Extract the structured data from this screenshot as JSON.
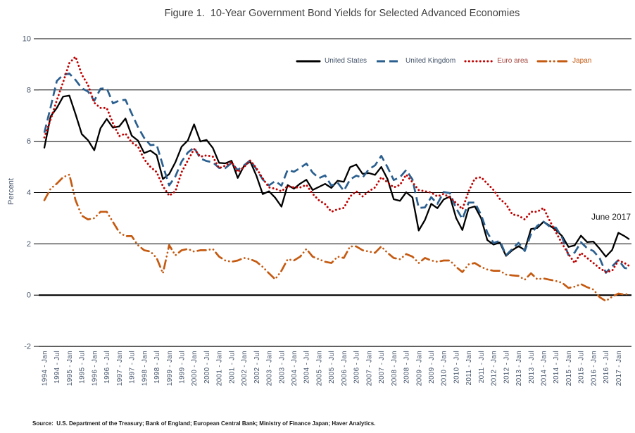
{
  "figure": {
    "title": "Figure 1.  10-Year Government Bond Yields for Selected Advanced Economies",
    "ylabel": "Percent",
    "annotation": "June 2017",
    "source": "Source:  U.S. Department of the Treasury; Bank of England; European Central Bank; Ministry of Finance Japan; Haver Analytics."
  },
  "chart_data": {
    "type": "line",
    "title": "Figure 1.  10-Year Government Bond Yields for Selected Advanced Economies",
    "xlabel": "",
    "ylabel": "Percent",
    "ylim": [
      -2,
      10
    ],
    "grid": "horizontal",
    "legend_position": "top-center-right",
    "annotations": [
      "June 2017"
    ],
    "y_ticks": [
      10,
      8,
      6,
      4,
      2,
      0,
      -2
    ],
    "x_tick_labels": [
      "1994 - Jan",
      "1994 - Jul",
      "1995 - Jan",
      "1995 - Jul",
      "1996 - Jan",
      "1996 - Jul",
      "1997 - Jan",
      "1997 - Jul",
      "1998 - Jan",
      "1998 - Jul",
      "1999 - Jan",
      "1999 - Jul",
      "2000 - Jan",
      "2000 - Jul",
      "2001 - Jan",
      "2001 - Jul",
      "2002 - Jan",
      "2002 - Jul",
      "2003 - Jan",
      "2003 - Jul",
      "2004 - Jan",
      "2004 - Jul",
      "2005 - Jan",
      "2005 - Jul",
      "2006 - Jan",
      "2006 - Jul",
      "2007 - Jan",
      "2007 - Jul",
      "2008 - Jan",
      "2008 - Jul",
      "2009 - Jan",
      "2009 - Jul",
      "2010 - Jan",
      "2010 - Jul",
      "2011 - Jan",
      "2011 - Jul",
      "2012 - Jan",
      "2012 - Jul",
      "2013 - Jan",
      "2013 - Jul",
      "2014 - Jan",
      "2014 - Jul",
      "2015 - Jan",
      "2015 - Jul",
      "2016 - Jan",
      "2016 - Jul",
      "2017 - Jan"
    ],
    "x": [
      1994,
      1994.25,
      1994.5,
      1994.75,
      1995,
      1995.25,
      1995.5,
      1995.75,
      1996,
      1996.25,
      1996.5,
      1996.75,
      1997,
      1997.25,
      1997.5,
      1997.75,
      1998,
      1998.25,
      1998.5,
      1998.75,
      1999,
      1999.25,
      1999.5,
      1999.75,
      2000,
      2000.25,
      2000.5,
      2000.75,
      2001,
      2001.25,
      2001.5,
      2001.75,
      2002,
      2002.25,
      2002.5,
      2002.75,
      2003,
      2003.25,
      2003.5,
      2003.75,
      2004,
      2004.25,
      2004.5,
      2004.75,
      2005,
      2005.25,
      2005.5,
      2005.75,
      2006,
      2006.25,
      2006.5,
      2006.75,
      2007,
      2007.25,
      2007.5,
      2007.75,
      2008,
      2008.25,
      2008.5,
      2008.75,
      2009,
      2009.25,
      2009.5,
      2009.75,
      2010,
      2010.25,
      2010.5,
      2010.75,
      2011,
      2011.25,
      2011.5,
      2011.75,
      2012,
      2012.25,
      2012.5,
      2012.75,
      2013,
      2013.25,
      2013.5,
      2013.75,
      2014,
      2014.25,
      2014.5,
      2014.75,
      2015,
      2015.25,
      2015.5,
      2015.75,
      2016,
      2016.25,
      2016.5,
      2016.75,
      2017,
      2017.25,
      2017.42
    ],
    "series": [
      {
        "name": "United States",
        "color": "#000000",
        "label_color": "#44546A",
        "style": "solid",
        "values": [
          5.75,
          6.97,
          7.3,
          7.74,
          7.78,
          7.06,
          6.28,
          6.04,
          5.65,
          6.51,
          6.87,
          6.53,
          6.58,
          6.89,
          6.22,
          6.03,
          5.54,
          5.64,
          5.46,
          4.53,
          4.72,
          5.18,
          5.79,
          6.03,
          6.66,
          5.99,
          6.05,
          5.74,
          5.16,
          5.14,
          5.24,
          4.57,
          5.04,
          5.21,
          4.65,
          3.94,
          4.05,
          3.8,
          3.45,
          4.29,
          4.15,
          4.35,
          4.5,
          4.1,
          4.22,
          4.34,
          4.18,
          4.46,
          4.42,
          4.99,
          5.09,
          4.73,
          4.76,
          4.69,
          5.0,
          4.53,
          3.74,
          3.68,
          4.01,
          3.81,
          2.52,
          2.93,
          3.56,
          3.39,
          3.73,
          3.85,
          3.01,
          2.54,
          3.39,
          3.46,
          3.0,
          2.15,
          1.97,
          2.05,
          1.53,
          1.75,
          1.91,
          1.76,
          2.58,
          2.62,
          2.86,
          2.71,
          2.54,
          2.3,
          1.88,
          1.94,
          2.32,
          2.07,
          2.09,
          1.81,
          1.5,
          1.76,
          2.43,
          2.3,
          2.19
        ]
      },
      {
        "name": "United Kingdom",
        "color": "#2A5F8F",
        "label_color": "#44546A",
        "style": "dashed",
        "values": [
          6.33,
          7.33,
          8.35,
          8.59,
          8.64,
          8.39,
          8.07,
          7.94,
          7.58,
          8.05,
          8.07,
          7.48,
          7.59,
          7.62,
          7.08,
          6.56,
          6.13,
          5.85,
          5.87,
          5.05,
          4.28,
          4.63,
          5.21,
          5.56,
          5.76,
          5.33,
          5.23,
          5.18,
          4.96,
          4.95,
          5.16,
          4.88,
          5.06,
          5.26,
          4.91,
          4.51,
          4.28,
          4.45,
          4.27,
          4.89,
          4.81,
          4.96,
          5.13,
          4.78,
          4.56,
          4.67,
          4.27,
          4.39,
          4.07,
          4.51,
          4.66,
          4.58,
          4.91,
          5.06,
          5.43,
          4.99,
          4.49,
          4.6,
          4.88,
          4.51,
          3.4,
          3.42,
          3.82,
          3.56,
          4.02,
          3.98,
          3.39,
          2.97,
          3.61,
          3.61,
          3.13,
          2.44,
          2.03,
          2.12,
          1.56,
          1.8,
          2.04,
          1.72,
          2.38,
          2.7,
          2.87,
          2.67,
          2.63,
          2.24,
          1.56,
          1.66,
          2.06,
          1.83,
          1.72,
          1.44,
          0.87,
          1.12,
          1.37,
          1.06,
          1.03
        ]
      },
      {
        "name": "Euro area",
        "color": "#C00000",
        "label_color": "#A5453E",
        "style": "dotted",
        "values": [
          6.15,
          6.85,
          7.6,
          8.3,
          9.05,
          9.3,
          8.6,
          8.2,
          7.5,
          7.3,
          7.3,
          6.7,
          6.2,
          6.3,
          5.95,
          5.8,
          5.3,
          5.0,
          4.8,
          4.25,
          3.88,
          4.05,
          4.8,
          5.25,
          5.7,
          5.4,
          5.45,
          5.4,
          4.95,
          5.05,
          5.2,
          4.8,
          5.0,
          5.25,
          4.95,
          4.55,
          4.2,
          4.15,
          4.05,
          4.25,
          4.2,
          4.2,
          4.3,
          3.95,
          3.7,
          3.55,
          3.25,
          3.35,
          3.4,
          3.85,
          4.05,
          3.85,
          4.05,
          4.2,
          4.6,
          4.4,
          4.2,
          4.3,
          4.7,
          4.4,
          4.1,
          4.05,
          4.0,
          3.85,
          3.95,
          3.8,
          3.6,
          3.35,
          4.05,
          4.55,
          4.6,
          4.35,
          4.1,
          3.75,
          3.55,
          3.15,
          3.1,
          2.95,
          3.25,
          3.25,
          3.4,
          2.9,
          2.45,
          2.0,
          1.6,
          1.25,
          1.65,
          1.45,
          1.25,
          1.05,
          0.9,
          0.95,
          1.35,
          1.25,
          1.15
        ]
      },
      {
        "name": "Japan",
        "color": "#C55A11",
        "label_color": "#C55A11",
        "style": "dashdot",
        "values": [
          3.7,
          4.15,
          4.35,
          4.6,
          4.7,
          3.7,
          3.1,
          2.95,
          3.0,
          3.25,
          3.25,
          2.85,
          2.45,
          2.3,
          2.3,
          1.95,
          1.75,
          1.7,
          1.45,
          0.85,
          1.95,
          1.55,
          1.75,
          1.8,
          1.7,
          1.75,
          1.75,
          1.8,
          1.5,
          1.35,
          1.3,
          1.35,
          1.45,
          1.4,
          1.3,
          1.1,
          0.85,
          0.62,
          0.95,
          1.4,
          1.35,
          1.5,
          1.8,
          1.5,
          1.4,
          1.3,
          1.25,
          1.5,
          1.45,
          1.9,
          1.9,
          1.75,
          1.7,
          1.65,
          1.9,
          1.65,
          1.45,
          1.4,
          1.6,
          1.5,
          1.25,
          1.45,
          1.35,
          1.3,
          1.35,
          1.35,
          1.1,
          0.9,
          1.2,
          1.25,
          1.1,
          1.0,
          0.95,
          0.95,
          0.8,
          0.77,
          0.75,
          0.6,
          0.85,
          0.62,
          0.65,
          0.6,
          0.55,
          0.48,
          0.28,
          0.33,
          0.43,
          0.31,
          0.22,
          -0.08,
          -0.23,
          -0.06,
          0.06,
          0.02,
          0.05
        ]
      }
    ]
  }
}
